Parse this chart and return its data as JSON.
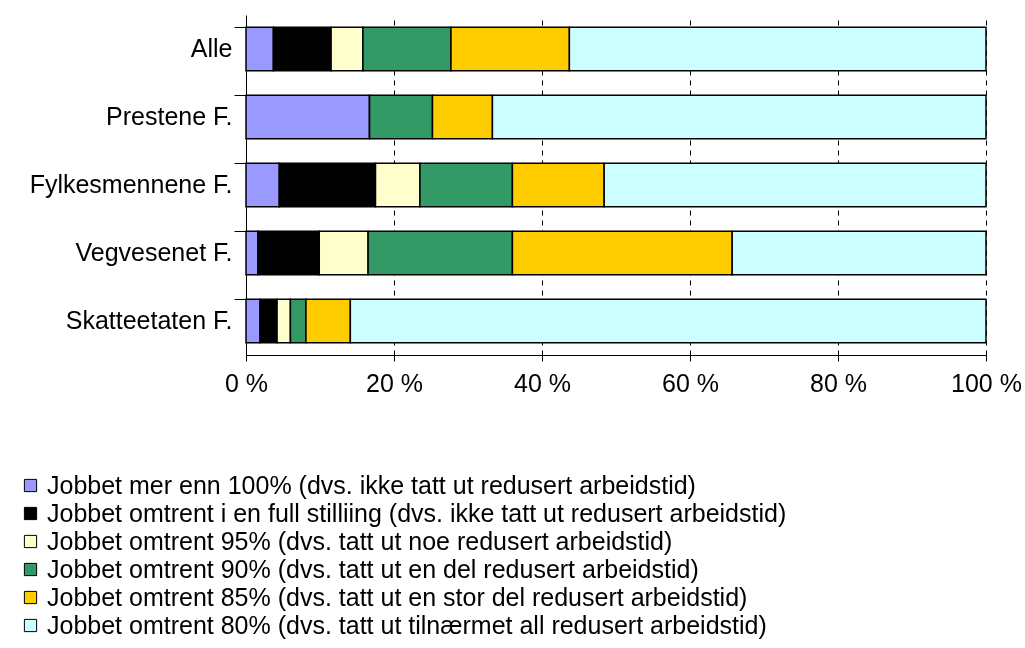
{
  "chart_data": {
    "type": "bar",
    "orientation": "horizontal",
    "stacked": true,
    "categories": [
      "Alle",
      "Prestene F.",
      "Fylkesmennene F.",
      "Vegvesenet F.",
      "Skatteetaten F."
    ],
    "series": [
      {
        "name": "Jobbet mer enn 100% (dvs. ikke tatt ut redusert arbeidstid)",
        "color": "#9999ff",
        "values": [
          3.7,
          16.7,
          4.5,
          1.6,
          1.9
        ]
      },
      {
        "name": "Jobbet omtrent i en full stilliing (dvs. ikke tatt ut redusert arbeidstid)",
        "color": "#000000",
        "values": [
          7.8,
          0,
          13.0,
          8.3,
          2.3
        ]
      },
      {
        "name": "Jobbet omtrent 95% (dvs. tatt ut noe redusert arbeidstid)",
        "color": "#ffffcc",
        "values": [
          4.3,
          0,
          6.0,
          6.6,
          1.8
        ]
      },
      {
        "name": "Jobbet omtrent 90% (dvs. tatt ut en del redusert arbeidstid)",
        "color": "#339966",
        "values": [
          11.9,
          8.5,
          12.5,
          19.5,
          2.1
        ]
      },
      {
        "name": "Jobbet omtrent 85% (dvs. tatt ut en stor del redusert arbeidstid)",
        "color": "#ffcc00",
        "values": [
          16.0,
          8.1,
          12.4,
          29.7,
          6.0
        ]
      },
      {
        "name": "Jobbet omtrent 80% (dvs. tatt ut tilnærmet all redusert arbeidstid)",
        "color": "#ccffff",
        "values": [
          56.3,
          66.7,
          51.6,
          34.3,
          85.9
        ]
      }
    ],
    "xlim": [
      0,
      100
    ],
    "xticks": [
      {
        "value": 0,
        "label": "0 %"
      },
      {
        "value": 20,
        "label": "20 %"
      },
      {
        "value": 40,
        "label": "40 %"
      },
      {
        "value": 60,
        "label": "60 %"
      },
      {
        "value": 80,
        "label": "80 %"
      },
      {
        "value": 100,
        "label": "100 %"
      }
    ],
    "grid": "x",
    "legend": "bottom"
  }
}
